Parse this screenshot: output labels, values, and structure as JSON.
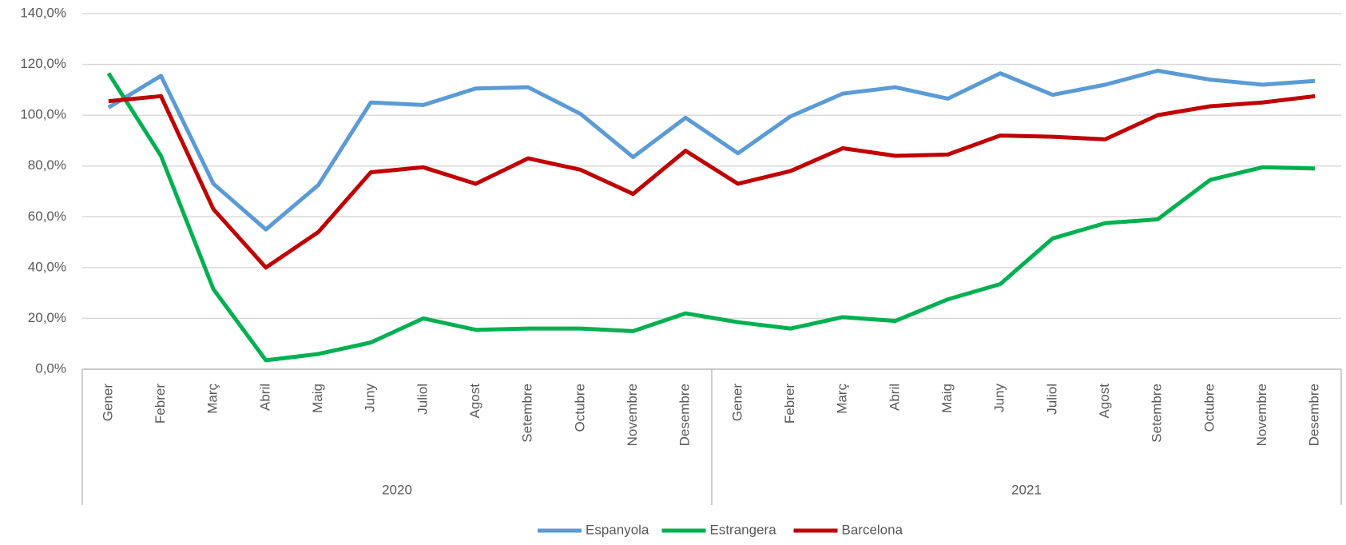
{
  "chart_data": {
    "type": "line",
    "categories": [
      "Gener",
      "Febrer",
      "Març",
      "Abril",
      "Maig",
      "Juny",
      "Juliol",
      "Agost",
      "Setembre",
      "Octubre",
      "Novembre",
      "Desembre",
      "Gener",
      "Febrer",
      "Març",
      "Abril",
      "Maig",
      "Juny",
      "Juliol",
      "Agost",
      "Setembre",
      "Octubre",
      "Novembre",
      "Desembre"
    ],
    "groups": [
      "2020",
      "2021"
    ],
    "series": [
      {
        "name": "Espanyola",
        "color": "#5b9bd5",
        "values": [
          103,
          115.5,
          73,
          55,
          72.5,
          105,
          104,
          110.5,
          111,
          100.5,
          83.5,
          99,
          85,
          99.5,
          108.5,
          111,
          106.5,
          116.5,
          108,
          112,
          117.5,
          114,
          112,
          113.5
        ]
      },
      {
        "name": "Estrangera",
        "color": "#00b050",
        "values": [
          116.5,
          84,
          31.5,
          3.5,
          6,
          10.5,
          20,
          15.5,
          16,
          16,
          15,
          22,
          18.5,
          16,
          20.5,
          19,
          27.5,
          33.5,
          51.5,
          57.5,
          59,
          74.5,
          79.5,
          79
        ]
      },
      {
        "name": "Barcelona",
        "color": "#c00000",
        "values": [
          105.5,
          107.5,
          63,
          40,
          54,
          77.5,
          79.5,
          73,
          83,
          78.5,
          69,
          86,
          73,
          78,
          87,
          84,
          84.5,
          92,
          91.5,
          90.5,
          100,
          103.5,
          105,
          107.5
        ]
      }
    ],
    "ylim": [
      0,
      140
    ],
    "yticks": [
      {
        "value": 0,
        "label": "0,0%"
      },
      {
        "value": 20,
        "label": "20,0%"
      },
      {
        "value": 40,
        "label": "40,0%"
      },
      {
        "value": 60,
        "label": "60,0%"
      },
      {
        "value": 80,
        "label": "80,0%"
      },
      {
        "value": 100,
        "label": "100,0%"
      },
      {
        "value": 120,
        "label": "120,0%"
      },
      {
        "value": 140,
        "label": "140,0%"
      }
    ],
    "grid": true,
    "legend": "bottom"
  }
}
